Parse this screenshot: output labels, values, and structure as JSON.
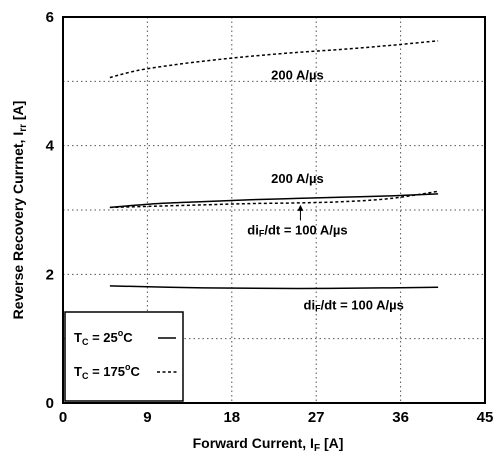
{
  "chart_data": {
    "type": "line",
    "xlabel": "Forward Current, I",
    "xlabel_sub": "F",
    "xlabel_unit": " [A]",
    "ylabel": "Reverse Recovery Currnet, I",
    "ylabel_sub": "rr",
    "ylabel_unit": " [A]",
    "xlim": [
      0,
      45
    ],
    "ylim": [
      0,
      6
    ],
    "x_ticks": [
      0,
      9,
      18,
      27,
      36,
      45
    ],
    "y_ticks": [
      0,
      2,
      4,
      6
    ],
    "grid": "dotted",
    "series": [
      {
        "id": "tc25-100",
        "style": "solid",
        "x": [
          5,
          15,
          25,
          35,
          40
        ],
        "y": [
          1.82,
          1.79,
          1.78,
          1.79,
          1.8
        ]
      },
      {
        "id": "tc25-200",
        "style": "solid",
        "x": [
          5,
          10,
          15,
          20,
          25,
          30,
          35,
          40
        ],
        "y": [
          3.04,
          3.1,
          3.13,
          3.16,
          3.18,
          3.2,
          3.22,
          3.25
        ]
      },
      {
        "id": "tc175-100",
        "style": "dashed",
        "x": [
          5,
          10,
          15,
          20,
          25,
          30,
          35,
          40
        ],
        "y": [
          3.04,
          3.06,
          3.08,
          3.1,
          3.11,
          3.13,
          3.18,
          3.29
        ]
      },
      {
        "id": "tc175-200",
        "style": "dashed",
        "x": [
          5,
          8,
          12,
          16,
          20,
          25,
          30,
          35,
          40
        ],
        "y": [
          5.06,
          5.17,
          5.26,
          5.33,
          5.39,
          5.45,
          5.5,
          5.56,
          5.63
        ]
      }
    ],
    "annotations": [
      {
        "text": "200 A/µs",
        "x": 25,
        "y": 5.03
      },
      {
        "text": "200 A/µs",
        "x": 25,
        "y": 3.42
      },
      {
        "text": "di",
        "sub": "F",
        "rest": "/dt = 100 A/µs",
        "x": 25,
        "y": 2.62,
        "arrow": true
      },
      {
        "text": "di",
        "sub": "F",
        "rest": "/dt = 100 A/µs",
        "x": 31,
        "y": 1.45
      }
    ],
    "legend": {
      "position": "bottom-left",
      "entries": [
        {
          "label": "T",
          "sub": "C",
          "rest": " = 25",
          "unit": "C",
          "style": "solid"
        },
        {
          "label": "T",
          "sub": "C",
          "rest": " = 175",
          "unit": "C",
          "style": "dashed"
        }
      ]
    }
  }
}
